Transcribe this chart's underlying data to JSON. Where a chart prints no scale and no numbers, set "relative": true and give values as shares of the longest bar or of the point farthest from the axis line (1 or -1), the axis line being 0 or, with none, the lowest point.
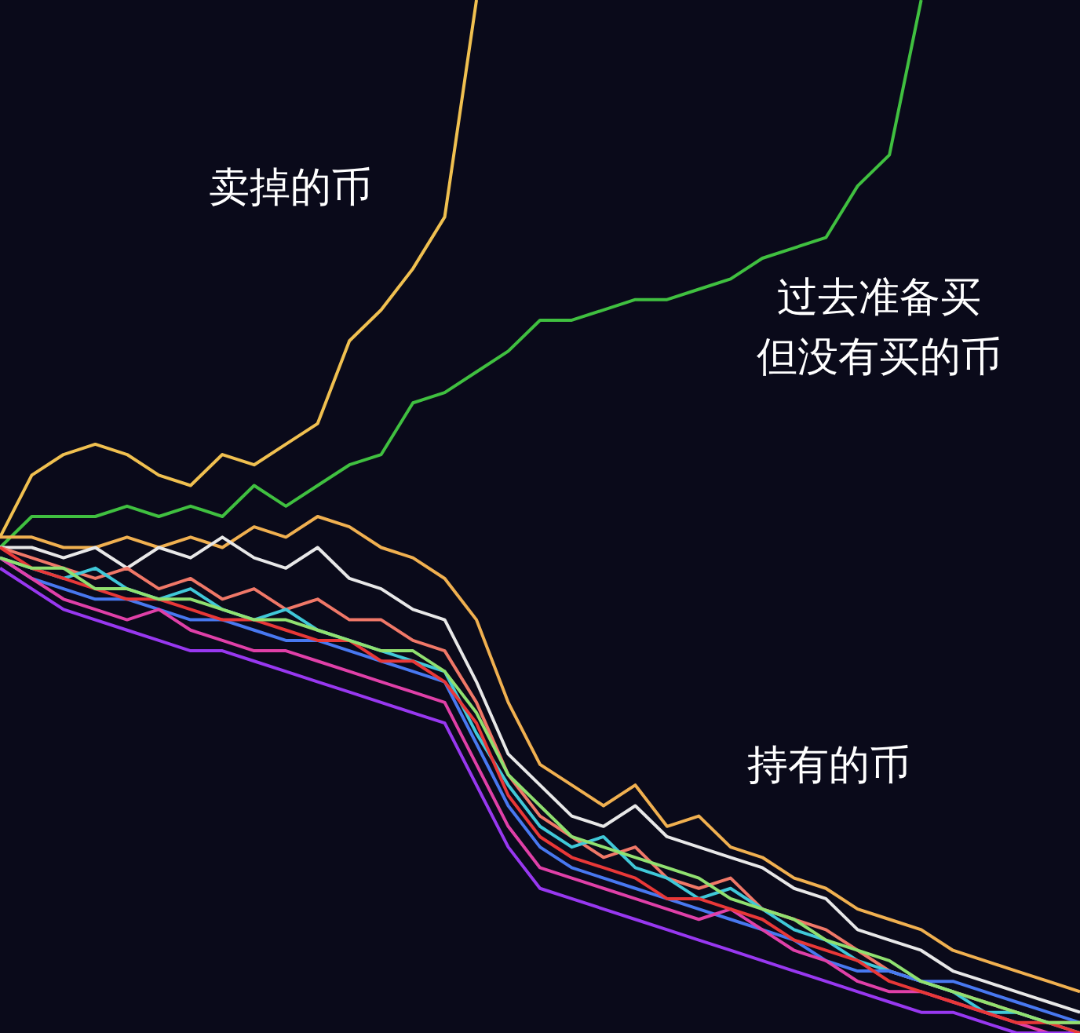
{
  "chart_data": {
    "type": "line",
    "relative": true,
    "grid": false,
    "marker": "none",
    "line_style": "solid",
    "categories": [
      null,
      null,
      null,
      null,
      null,
      null,
      null,
      null,
      null,
      null,
      null,
      null,
      null,
      null,
      null,
      null,
      null,
      null,
      null,
      null,
      null,
      null,
      null,
      null,
      null,
      null,
      null,
      null,
      null,
      null,
      null,
      null,
      null,
      null,
      null
    ],
    "annotations": [
      "卖掉的币",
      "过去准备买",
      "但没有买的币",
      "持有的币"
    ],
    "series": [
      {
        "color": "#f0c050",
        "values": [
          0.48,
          0.54,
          0.56,
          0.57,
          0.56,
          0.54,
          0.53,
          0.56,
          0.55,
          0.57,
          0.59,
          0.67,
          0.7,
          0.74,
          0.79,
          1.0,
          null,
          null,
          null,
          null,
          null,
          null,
          null,
          null,
          null,
          null,
          null,
          null,
          null,
          null,
          null,
          null,
          null,
          null,
          null
        ]
      },
      {
        "color": "#40c040",
        "values": [
          0.47,
          0.5,
          0.5,
          0.5,
          0.51,
          0.5,
          0.51,
          0.5,
          0.53,
          0.51,
          0.53,
          0.55,
          0.56,
          0.61,
          0.62,
          0.64,
          0.66,
          0.69,
          0.69,
          0.7,
          0.71,
          0.71,
          0.72,
          0.73,
          0.75,
          0.76,
          0.77,
          0.82,
          0.85,
          1.0,
          null,
          null,
          null,
          null,
          null
        ]
      },
      {
        "color": "#f0b050",
        "values": [
          0.48,
          0.48,
          0.47,
          0.47,
          0.48,
          0.47,
          0.48,
          0.47,
          0.49,
          0.48,
          0.5,
          0.49,
          0.47,
          0.46,
          0.44,
          0.4,
          0.32,
          0.26,
          0.24,
          0.22,
          0.24,
          0.2,
          0.21,
          0.18,
          0.17,
          0.15,
          0.14,
          0.12,
          0.11,
          0.1,
          0.08,
          0.07,
          0.06,
          0.05,
          0.04
        ]
      },
      {
        "color": "#e8e8e8",
        "values": [
          0.47,
          0.47,
          0.46,
          0.47,
          0.45,
          0.47,
          0.46,
          0.48,
          0.46,
          0.45,
          0.47,
          0.44,
          0.43,
          0.41,
          0.4,
          0.34,
          0.27,
          0.24,
          0.21,
          0.2,
          0.22,
          0.19,
          0.18,
          0.17,
          0.16,
          0.14,
          0.13,
          0.1,
          0.09,
          0.08,
          0.06,
          0.05,
          0.04,
          0.03,
          0.02
        ]
      },
      {
        "color": "#f07868",
        "values": [
          0.47,
          0.46,
          0.45,
          0.44,
          0.45,
          0.43,
          0.44,
          0.42,
          0.43,
          0.41,
          0.42,
          0.4,
          0.4,
          0.38,
          0.37,
          0.32,
          0.25,
          0.21,
          0.19,
          0.17,
          0.18,
          0.15,
          0.14,
          0.15,
          0.12,
          0.11,
          0.1,
          0.08,
          0.06,
          0.05,
          0.04,
          0.03,
          0.02,
          0.01,
          0.01
        ]
      },
      {
        "color": "#40c8d8",
        "values": [
          0.46,
          0.45,
          0.44,
          0.45,
          0.43,
          0.42,
          0.43,
          0.41,
          0.4,
          0.41,
          0.39,
          0.38,
          0.37,
          0.36,
          0.35,
          0.29,
          0.24,
          0.2,
          0.18,
          0.19,
          0.16,
          0.15,
          0.13,
          0.14,
          0.12,
          0.1,
          0.09,
          0.07,
          0.06,
          0.05,
          0.04,
          0.02,
          0.02,
          0.01,
          0.0
        ]
      },
      {
        "color": "#4878f0",
        "values": [
          0.46,
          0.44,
          0.43,
          0.42,
          0.42,
          0.41,
          0.4,
          0.4,
          0.39,
          0.38,
          0.38,
          0.37,
          0.36,
          0.35,
          0.34,
          0.28,
          0.22,
          0.18,
          0.16,
          0.15,
          0.14,
          0.13,
          0.12,
          0.11,
          0.1,
          0.09,
          0.07,
          0.06,
          0.06,
          0.05,
          0.05,
          0.04,
          0.03,
          0.02,
          0.01
        ]
      },
      {
        "color": "#e040a8",
        "values": [
          0.46,
          0.44,
          0.42,
          0.41,
          0.4,
          0.41,
          0.39,
          0.38,
          0.37,
          0.37,
          0.36,
          0.35,
          0.34,
          0.33,
          0.32,
          0.26,
          0.2,
          0.16,
          0.15,
          0.14,
          0.13,
          0.12,
          0.11,
          0.12,
          0.1,
          0.08,
          0.07,
          0.05,
          0.04,
          0.04,
          0.03,
          0.02,
          0.01,
          0.0,
          0.0
        ]
      },
      {
        "color": "#9838f0",
        "values": [
          0.45,
          0.43,
          0.41,
          0.4,
          0.39,
          0.38,
          0.37,
          0.37,
          0.36,
          0.35,
          0.34,
          0.33,
          0.32,
          0.31,
          0.3,
          0.24,
          0.18,
          0.14,
          0.13,
          0.12,
          0.11,
          0.1,
          0.09,
          0.08,
          0.07,
          0.06,
          0.05,
          0.04,
          0.03,
          0.02,
          0.02,
          0.01,
          0.0,
          0.0,
          0.0
        ]
      },
      {
        "color": "#e83838",
        "values": [
          0.47,
          0.45,
          0.44,
          0.43,
          0.42,
          0.42,
          0.41,
          0.4,
          0.4,
          0.39,
          0.38,
          0.38,
          0.36,
          0.36,
          0.34,
          0.3,
          0.23,
          0.19,
          0.17,
          0.16,
          0.15,
          0.13,
          0.13,
          0.12,
          0.11,
          0.09,
          0.08,
          0.07,
          0.05,
          0.04,
          0.03,
          0.02,
          0.01,
          0.01,
          0.0
        ]
      },
      {
        "color": "#90e070",
        "values": [
          0.46,
          0.45,
          0.45,
          0.43,
          0.43,
          0.42,
          0.42,
          0.41,
          0.4,
          0.4,
          0.39,
          0.38,
          0.37,
          0.37,
          0.35,
          0.31,
          0.25,
          0.22,
          0.19,
          0.18,
          0.17,
          0.16,
          0.15,
          0.13,
          0.12,
          0.11,
          0.09,
          0.08,
          0.07,
          0.05,
          0.04,
          0.03,
          0.02,
          0.01,
          0.01
        ]
      }
    ]
  }
}
